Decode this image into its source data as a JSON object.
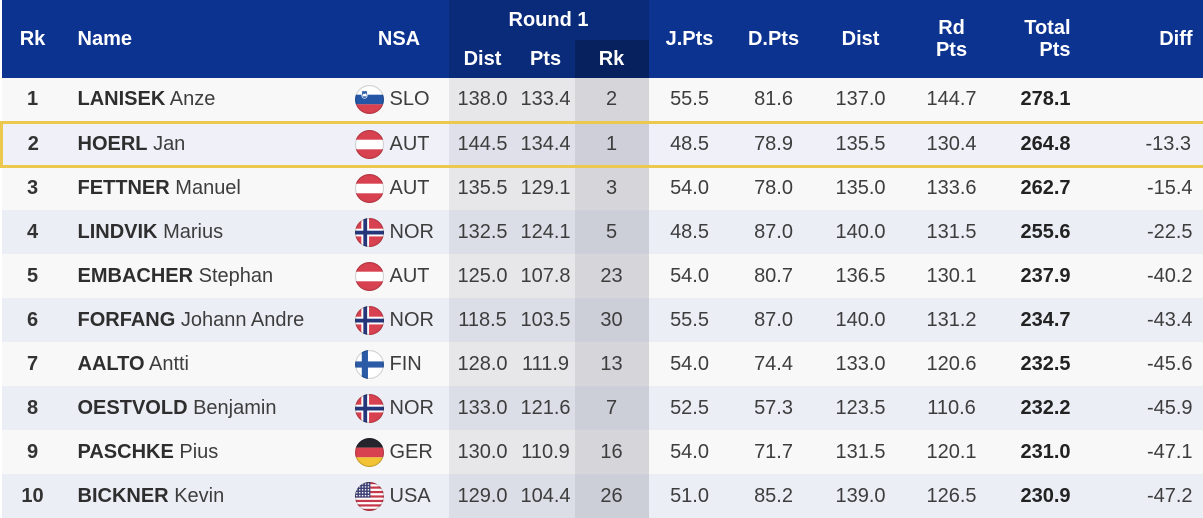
{
  "colors": {
    "header_bg": "#0d3390",
    "round1_header_bg": "#0a2b7a",
    "round1_rk_header_bg": "#07215f",
    "header_text": "#ffffff",
    "row_bg": "#f8f8f9",
    "row_alt_bg": "#eceef6",
    "highlight_row_bg": "#eff0f8",
    "highlight_border": "#edc84f",
    "text": "#3d3d3d"
  },
  "table": {
    "headers": {
      "rk": "Rk",
      "name": "Name",
      "nsa": "NSA",
      "round1": {
        "title": "Round 1",
        "dist": "Dist",
        "pts": "Pts",
        "rk": "Rk"
      },
      "j_pts": "J.Pts",
      "d_pts": "D.Pts",
      "dist": "Dist",
      "rd_pts_line1": "Rd",
      "rd_pts_line2": "Pts",
      "total_line1": "Total",
      "total_line2": "Pts",
      "diff": "Diff"
    },
    "rows": [
      {
        "rank": "1",
        "surname": "LANISEK",
        "given": "Anze",
        "nsa": "SLO",
        "r1_dist": "138.0",
        "r1_pts": "133.4",
        "r1_rk": "2",
        "j_pts": "55.5",
        "d_pts": "81.6",
        "dist": "137.0",
        "rd_pts": "144.7",
        "total": "278.1",
        "diff": "",
        "highlighted": false
      },
      {
        "rank": "2",
        "surname": "HOERL",
        "given": "Jan",
        "nsa": "AUT",
        "r1_dist": "144.5",
        "r1_pts": "134.4",
        "r1_rk": "1",
        "j_pts": "48.5",
        "d_pts": "78.9",
        "dist": "135.5",
        "rd_pts": "130.4",
        "total": "264.8",
        "diff": "-13.3",
        "highlighted": true
      },
      {
        "rank": "3",
        "surname": "FETTNER",
        "given": "Manuel",
        "nsa": "AUT",
        "r1_dist": "135.5",
        "r1_pts": "129.1",
        "r1_rk": "3",
        "j_pts": "54.0",
        "d_pts": "78.0",
        "dist": "135.0",
        "rd_pts": "133.6",
        "total": "262.7",
        "diff": "-15.4",
        "highlighted": false
      },
      {
        "rank": "4",
        "surname": "LINDVIK",
        "given": "Marius",
        "nsa": "NOR",
        "r1_dist": "132.5",
        "r1_pts": "124.1",
        "r1_rk": "5",
        "j_pts": "48.5",
        "d_pts": "87.0",
        "dist": "140.0",
        "rd_pts": "131.5",
        "total": "255.6",
        "diff": "-22.5",
        "highlighted": false
      },
      {
        "rank": "5",
        "surname": "EMBACHER",
        "given": "Stephan",
        "nsa": "AUT",
        "r1_dist": "125.0",
        "r1_pts": "107.8",
        "r1_rk": "23",
        "j_pts": "54.0",
        "d_pts": "80.7",
        "dist": "136.5",
        "rd_pts": "130.1",
        "total": "237.9",
        "diff": "-40.2",
        "highlighted": false
      },
      {
        "rank": "6",
        "surname": "FORFANG",
        "given": "Johann Andre",
        "nsa": "NOR",
        "r1_dist": "118.5",
        "r1_pts": "103.5",
        "r1_rk": "30",
        "j_pts": "55.5",
        "d_pts": "87.0",
        "dist": "140.0",
        "rd_pts": "131.2",
        "total": "234.7",
        "diff": "-43.4",
        "highlighted": false
      },
      {
        "rank": "7",
        "surname": "AALTO",
        "given": "Antti",
        "nsa": "FIN",
        "r1_dist": "128.0",
        "r1_pts": "111.9",
        "r1_rk": "13",
        "j_pts": "54.0",
        "d_pts": "74.4",
        "dist": "133.0",
        "rd_pts": "120.6",
        "total": "232.5",
        "diff": "-45.6",
        "highlighted": false
      },
      {
        "rank": "8",
        "surname": "OESTVOLD",
        "given": "Benjamin",
        "nsa": "NOR",
        "r1_dist": "133.0",
        "r1_pts": "121.6",
        "r1_rk": "7",
        "j_pts": "52.5",
        "d_pts": "57.3",
        "dist": "123.5",
        "rd_pts": "110.6",
        "total": "232.2",
        "diff": "-45.9",
        "highlighted": false
      },
      {
        "rank": "9",
        "surname": "PASCHKE",
        "given": "Pius",
        "nsa": "GER",
        "r1_dist": "130.0",
        "r1_pts": "110.9",
        "r1_rk": "16",
        "j_pts": "54.0",
        "d_pts": "71.7",
        "dist": "131.5",
        "rd_pts": "120.1",
        "total": "231.0",
        "diff": "-47.1",
        "highlighted": false
      },
      {
        "rank": "10",
        "surname": "BICKNER",
        "given": "Kevin",
        "nsa": "USA",
        "r1_dist": "129.0",
        "r1_pts": "104.4",
        "r1_rk": "26",
        "j_pts": "51.0",
        "d_pts": "85.2",
        "dist": "139.0",
        "rd_pts": "126.5",
        "total": "230.9",
        "diff": "-47.2",
        "highlighted": false
      }
    ]
  }
}
